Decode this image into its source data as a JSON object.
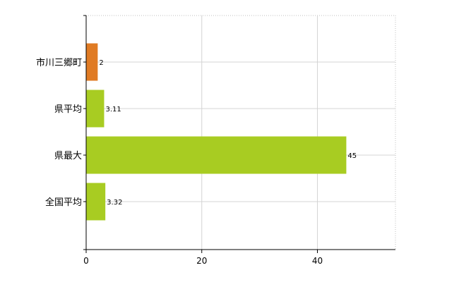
{
  "chart_data": {
    "type": "bar",
    "orientation": "horizontal",
    "categories": [
      "市川三郷町",
      "県平均",
      "県最大",
      "全国平均"
    ],
    "values": [
      2,
      3.11,
      45,
      3.32
    ],
    "data_labels": [
      "2",
      "3.11",
      "45",
      "3.32"
    ],
    "colors": [
      "#e07b24",
      "#a8cc22",
      "#a8cc22",
      "#a8cc22"
    ],
    "xlim": [
      0,
      53.5
    ],
    "xticks": [
      0,
      20,
      40
    ],
    "title": "",
    "xlabel": "",
    "ylabel": "",
    "grid": true,
    "legend": "none"
  }
}
